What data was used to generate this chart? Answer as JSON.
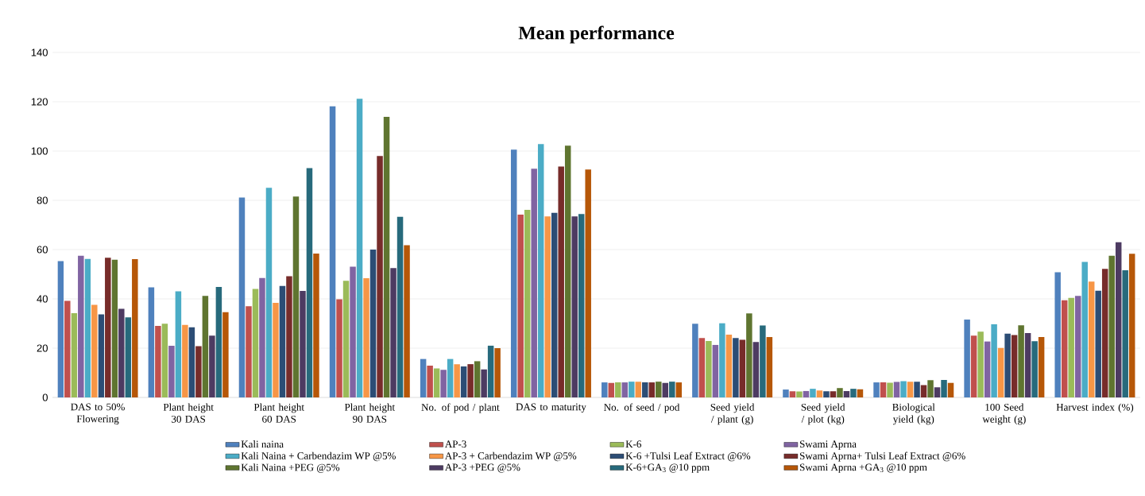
{
  "chart_data": {
    "type": "bar",
    "title": "Mean performance",
    "categories": [
      "DAS to 50% Flowering",
      "Plant height 30 DAS",
      "Plant height 60 DAS",
      "Plant height 90 DAS",
      "No. of pod / plant",
      "DAS to maturity",
      "No. of seed / pod",
      "Seed yield / plant (g)",
      "Seed yield / plot (kg)",
      "Biological yield (kg)",
      "100 Seed weight (g)",
      "Harvest index (%)"
    ],
    "series": [
      {
        "name": "Kali naina",
        "color": "#4f81bd",
        "values": [
          55.3,
          44.7,
          81.1,
          118.2,
          15.6,
          100.6,
          6.1,
          29.9,
          3.2,
          6.1,
          31.6,
          50.8
        ]
      },
      {
        "name": "AP-3",
        "color": "#c0504d",
        "values": [
          39.2,
          29,
          37,
          39.8,
          12.9,
          74.2,
          5.9,
          24.1,
          2.5,
          6.1,
          25.1,
          39.4
        ]
      },
      {
        "name": "K-6",
        "color": "#9bbb59",
        "values": [
          34.2,
          29.9,
          44,
          47.3,
          11.8,
          76.1,
          6.1,
          22.9,
          2.4,
          6,
          26.7,
          40.4
        ]
      },
      {
        "name": "Swami Aprna",
        "color": "#8064a2",
        "values": [
          57.5,
          21,
          48.5,
          53.1,
          11.2,
          92.8,
          6.1,
          21.3,
          2.6,
          6.3,
          22.7,
          41.2
        ]
      },
      {
        "name": "Kali Naina + Carbendazim WP @5%",
        "color": "#4bacc6",
        "values": [
          56.2,
          43.1,
          85.1,
          121.2,
          15.6,
          102.8,
          6.4,
          30.1,
          3.5,
          6.6,
          29.7,
          55
        ]
      },
      {
        "name": "AP-3 + Carbendazim WP @5%",
        "color": "#f79646",
        "values": [
          37.6,
          29.4,
          38.4,
          48.4,
          13.5,
          73.5,
          6.4,
          25.5,
          2.8,
          6.4,
          20.1,
          47
        ]
      },
      {
        "name": "K-6 +Tulsi Leaf Extract @6%",
        "color": "#2c4d75",
        "values": [
          33.7,
          28.5,
          45.2,
          60,
          12.6,
          74.9,
          6.1,
          24.1,
          2.5,
          6.4,
          25.9,
          43.3
        ]
      },
      {
        "name": "Swami Aprna+ Tulsi Leaf Extract @6%",
        "color": "#772c2a",
        "values": [
          56.7,
          20.8,
          49.2,
          98,
          13.5,
          93.7,
          6.1,
          23.4,
          2.5,
          5,
          25.3,
          52.2
        ]
      },
      {
        "name": "Kali Naina +PEG @5%",
        "color": "#5f7530",
        "values": [
          55.9,
          41.2,
          81.5,
          113.9,
          14.7,
          102.2,
          6.4,
          34.1,
          3.8,
          7,
          29.3,
          57.5
        ]
      },
      {
        "name": "AP-3 +PEG @5%",
        "color": "#4d3b62",
        "values": [
          36,
          25.1,
          43.2,
          52.5,
          11.4,
          73.5,
          5.9,
          22.5,
          2.6,
          4.1,
          26.1,
          63
        ]
      },
      {
        "name": "K-6+GA$_{3}$ @10 ppm",
        "color": "#276a7c",
        "values": [
          32.5,
          44.8,
          93.1,
          73.3,
          21,
          74.4,
          6.4,
          29.2,
          3.5,
          7.1,
          22.8,
          51.6
        ]
      },
      {
        "name": "Swami Aprna +GA$_{3}$ @10 ppm",
        "color": "#b65708",
        "values": [
          56.1,
          34.6,
          58.4,
          61.8,
          20,
          92.5,
          6.1,
          24.5,
          3.3,
          5.9,
          24.5,
          58.3
        ]
      }
    ],
    "ylim": [
      0,
      140
    ],
    "yticks": [
      0,
      20,
      40,
      60,
      80,
      100,
      120,
      140
    ],
    "grid": "y",
    "legend": "bottom"
  }
}
